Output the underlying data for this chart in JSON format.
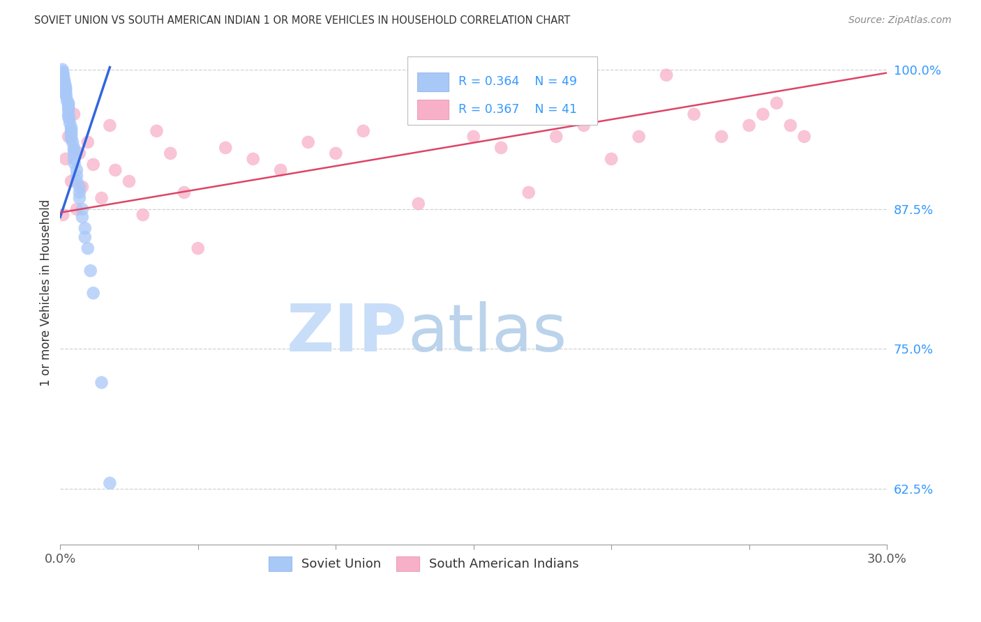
{
  "title": "SOVIET UNION VS SOUTH AMERICAN INDIAN 1 OR MORE VEHICLES IN HOUSEHOLD CORRELATION CHART",
  "source": "Source: ZipAtlas.com",
  "ylabel": "1 or more Vehicles in Household",
  "xlim": [
    0.0,
    0.3
  ],
  "ylim": [
    0.575,
    1.025
  ],
  "yticks": [
    0.625,
    0.75,
    0.875,
    1.0
  ],
  "ytick_labels": [
    "62.5%",
    "75.0%",
    "87.5%",
    "100.0%"
  ],
  "xtick_vals": [
    0.0,
    0.05,
    0.1,
    0.15,
    0.2,
    0.25,
    0.3
  ],
  "xtick_labels": [
    "0.0%",
    "",
    "",
    "",
    "",
    "",
    "30.0%"
  ],
  "blue_color": "#a8c8f8",
  "pink_color": "#f8b0c8",
  "blue_line_color": "#3366dd",
  "pink_line_color": "#dd4466",
  "legend_text_color": "#3399ff",
  "watermark_zip_color": "#c8ddf8",
  "watermark_atlas_color": "#b0cce8",
  "soviet_x": [
    0.0008,
    0.001,
    0.001,
    0.0012,
    0.0012,
    0.0015,
    0.0015,
    0.0018,
    0.002,
    0.002,
    0.002,
    0.002,
    0.0022,
    0.0025,
    0.003,
    0.003,
    0.003,
    0.003,
    0.003,
    0.003,
    0.0032,
    0.0035,
    0.004,
    0.004,
    0.004,
    0.004,
    0.004,
    0.004,
    0.0045,
    0.005,
    0.005,
    0.005,
    0.005,
    0.0052,
    0.006,
    0.006,
    0.006,
    0.007,
    0.007,
    0.007,
    0.008,
    0.008,
    0.009,
    0.009,
    0.01,
    0.011,
    0.012,
    0.015,
    0.018
  ],
  "soviet_y": [
    1.0,
    0.998,
    0.996,
    0.994,
    0.992,
    0.99,
    0.988,
    0.986,
    0.984,
    0.982,
    0.98,
    0.978,
    0.976,
    0.972,
    0.97,
    0.968,
    0.966,
    0.964,
    0.96,
    0.958,
    0.956,
    0.952,
    0.948,
    0.946,
    0.944,
    0.942,
    0.94,
    0.938,
    0.935,
    0.93,
    0.928,
    0.925,
    0.92,
    0.916,
    0.91,
    0.905,
    0.9,
    0.895,
    0.89,
    0.885,
    0.875,
    0.868,
    0.858,
    0.85,
    0.84,
    0.82,
    0.8,
    0.72,
    0.63
  ],
  "south_x": [
    0.001,
    0.002,
    0.003,
    0.004,
    0.005,
    0.006,
    0.007,
    0.008,
    0.01,
    0.012,
    0.015,
    0.018,
    0.02,
    0.025,
    0.03,
    0.035,
    0.04,
    0.045,
    0.05,
    0.06,
    0.07,
    0.08,
    0.09,
    0.1,
    0.11,
    0.13,
    0.15,
    0.16,
    0.17,
    0.18,
    0.19,
    0.2,
    0.21,
    0.22,
    0.23,
    0.24,
    0.25,
    0.255,
    0.26,
    0.265,
    0.27
  ],
  "south_y": [
    0.87,
    0.92,
    0.94,
    0.9,
    0.96,
    0.875,
    0.925,
    0.895,
    0.935,
    0.915,
    0.885,
    0.95,
    0.91,
    0.9,
    0.87,
    0.945,
    0.925,
    0.89,
    0.84,
    0.93,
    0.92,
    0.91,
    0.935,
    0.925,
    0.945,
    0.88,
    0.94,
    0.93,
    0.89,
    0.94,
    0.95,
    0.92,
    0.94,
    0.995,
    0.96,
    0.94,
    0.95,
    0.96,
    0.97,
    0.95,
    0.94
  ],
  "blue_line_x": [
    0.0,
    0.018
  ],
  "blue_line_y": [
    0.868,
    1.002
  ],
  "pink_line_x": [
    0.0,
    0.3
  ],
  "pink_line_y": [
    0.872,
    0.997
  ]
}
